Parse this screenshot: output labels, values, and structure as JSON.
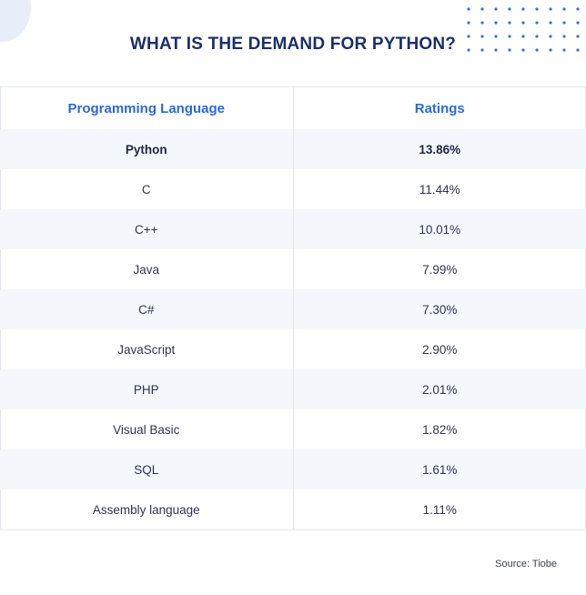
{
  "title": "WHAT IS THE DEMAND FOR PYTHON?",
  "colors": {
    "title": "#1c2f6b",
    "header": "#2b6ad8",
    "row_shade": "#f4f7fc",
    "dots": "#3b6fd9"
  },
  "table": {
    "headers": {
      "language": "Programming Language",
      "ratings": "Ratings"
    },
    "rows": [
      {
        "language": "Python",
        "rating": "13.86%"
      },
      {
        "language": "C",
        "rating": "11.44%"
      },
      {
        "language": "C++",
        "rating": "10.01%"
      },
      {
        "language": "Java",
        "rating": "7.99%"
      },
      {
        "language": "C#",
        "rating": "7.30%"
      },
      {
        "language": "JavaScript",
        "rating": "2.90%"
      },
      {
        "language": "PHP",
        "rating": "2.01%"
      },
      {
        "language": "Visual Basic",
        "rating": "1.82%"
      },
      {
        "language": "SQL",
        "rating": "1.61%"
      },
      {
        "language": "Assembly language",
        "rating": "1.11%"
      }
    ]
  },
  "chart_data": {
    "type": "table",
    "title": "WHAT IS THE DEMAND FOR PYTHON?",
    "columns": [
      "Programming Language",
      "Ratings"
    ],
    "categories": [
      "Python",
      "C",
      "C++",
      "Java",
      "C#",
      "JavaScript",
      "PHP",
      "Visual Basic",
      "SQL",
      "Assembly language"
    ],
    "values": [
      13.86,
      11.44,
      10.01,
      7.99,
      7.3,
      2.9,
      2.01,
      1.82,
      1.61,
      1.11
    ],
    "unit": "%",
    "source": "Source: Tiobe"
  },
  "source": "Source: Tiobe"
}
